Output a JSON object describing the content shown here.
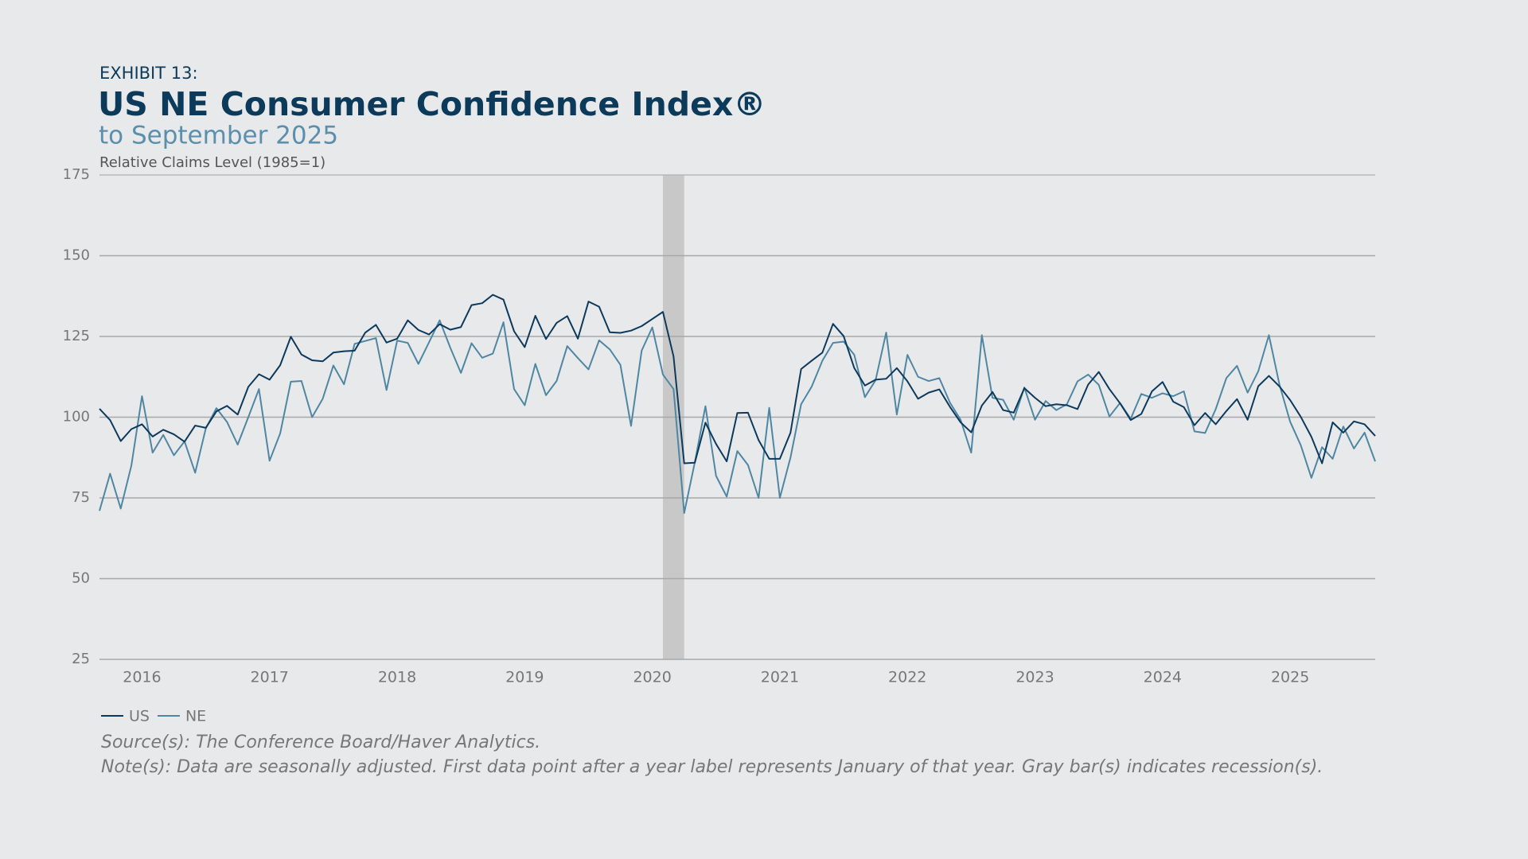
{
  "chart_data": {
    "type": "line",
    "label": "EXHIBIT 13:",
    "title": "US NE Consumer Confidence Index®",
    "subtitle": "to September 2025",
    "y_label": "Relative Claims Level (1985=1)",
    "source": "Source(s): The Conference Board/Haver Analytics.",
    "note": "Note(s): Data are seasonally adjusted. First data point after a year label represents January of that year. Gray bar(s) indicates recession(s).",
    "categories": [
      null,
      null,
      null,
      null,
      "2016",
      null,
      null,
      null,
      null,
      null,
      null,
      null,
      null,
      null,
      null,
      null,
      "2017",
      null,
      null,
      null,
      null,
      null,
      null,
      null,
      null,
      null,
      null,
      null,
      "2018",
      null,
      null,
      null,
      null,
      null,
      null,
      null,
      null,
      null,
      null,
      null,
      "2019",
      null,
      null,
      null,
      null,
      null,
      null,
      null,
      null,
      null,
      null,
      null,
      "2020",
      null,
      null,
      null,
      null,
      null,
      null,
      null,
      null,
      null,
      null,
      null,
      "2021",
      null,
      null,
      null,
      null,
      null,
      null,
      null,
      null,
      null,
      null,
      null,
      "2022",
      null,
      null,
      null,
      null,
      null,
      null,
      null,
      null,
      null,
      null,
      null,
      "2023",
      null,
      null,
      null,
      null,
      null,
      null,
      null,
      null,
      null,
      null,
      null,
      "2024",
      null,
      null,
      null,
      null,
      null,
      null,
      null,
      null,
      null,
      null,
      null,
      "2025",
      null,
      null,
      null,
      null,
      null,
      null,
      null,
      null
    ],
    "series": [
      {
        "name": "US",
        "color": "#0d3a5c",
        "values": [
          102.6,
          99.1,
          92.6,
          96.3,
          97.8,
          94,
          96.1,
          94.7,
          92.4,
          97.4,
          96.7,
          101.8,
          103.5,
          100.8,
          109.4,
          113.3,
          111.6,
          116.1,
          124.9,
          119.4,
          117.6,
          117.3,
          120,
          120.4,
          120.6,
          126.2,
          128.6,
          123.1,
          124.3,
          130,
          127,
          125.6,
          128.8,
          127.1,
          127.9,
          134.7,
          135.3,
          137.9,
          136.4,
          126.6,
          121.7,
          131.4,
          124.2,
          129.2,
          131.3,
          124.3,
          135.8,
          134.2,
          126.3,
          126.1,
          126.8,
          128.2,
          130.4,
          132.6,
          118.8,
          85.7,
          85.9,
          98.3,
          91.7,
          86.3,
          101.3,
          101.4,
          92.9,
          87.1,
          87.1,
          95.2,
          114.9,
          117.5,
          120,
          128.9,
          125.1,
          115.2,
          109.8,
          111.6,
          111.9,
          115.2,
          111.1,
          105.7,
          107.6,
          108.6,
          103.2,
          98.4,
          95.3,
          103.6,
          107.8,
          102.2,
          101.4,
          109,
          106,
          103.4,
          104,
          103.7,
          102.5,
          110.1,
          114,
          108.7,
          104.3,
          99.1,
          101,
          108,
          110.9,
          104.8,
          103.1,
          97.5,
          101.3,
          97.8,
          101.9,
          105.6,
          99.2,
          109.6,
          112.8,
          109.5,
          105.3,
          100.1,
          93.9,
          85.7,
          98.4,
          95.2,
          98.7,
          97.8,
          94.2
        ]
      },
      {
        "name": "NE",
        "color": "#4f87a3",
        "values": [
          71,
          82.5,
          71.7,
          85,
          106.5,
          89,
          94.5,
          88.2,
          92.5,
          82.8,
          96.5,
          102.8,
          98.5,
          91.5,
          100,
          108.7,
          86.5,
          95,
          111,
          111.2,
          100,
          105.7,
          116,
          110.2,
          122.7,
          123.6,
          124.5,
          108.4,
          123.7,
          123,
          116.5,
          123.2,
          130,
          121.5,
          113.7,
          122.9,
          118.4,
          119.7,
          129.4,
          108.7,
          103.7,
          116.5,
          106.8,
          111.2,
          122,
          118.3,
          114.8,
          123.8,
          121,
          116.2,
          97.3,
          120.6,
          127.8,
          113.2,
          108.7,
          70.3,
          86,
          103.4,
          81.8,
          75.4,
          89.5,
          85.2,
          75,
          102.9,
          75,
          87.5,
          104,
          109.5,
          117.5,
          123,
          123.4,
          119.3,
          106.2,
          111.4,
          126.2,
          100.8,
          119.3,
          112.5,
          111.2,
          112.1,
          104.5,
          99.2,
          89,
          125.4,
          106,
          105.4,
          99.2,
          109.2,
          99.2,
          105,
          102.2,
          104,
          111.1,
          113.2,
          110,
          100.2,
          104.4,
          99.5,
          107.2,
          106,
          107.4,
          106.5,
          108,
          95.6,
          95.1,
          102.5,
          112.1,
          115.9,
          107.6,
          114.2,
          125.4,
          110,
          98.6,
          91.3,
          81.2,
          90.7,
          87.1,
          97.1,
          90.3,
          95.2,
          86.3
        ]
      }
    ],
    "shaded_ranges": [
      {
        "from": 53,
        "to": 55,
        "color": "#c8c8c9"
      }
    ],
    "ylim": [
      25,
      175
    ],
    "yticks": [
      25,
      50,
      75,
      100,
      125,
      150,
      175
    ],
    "grid": true,
    "legend": "bottom-left"
  }
}
